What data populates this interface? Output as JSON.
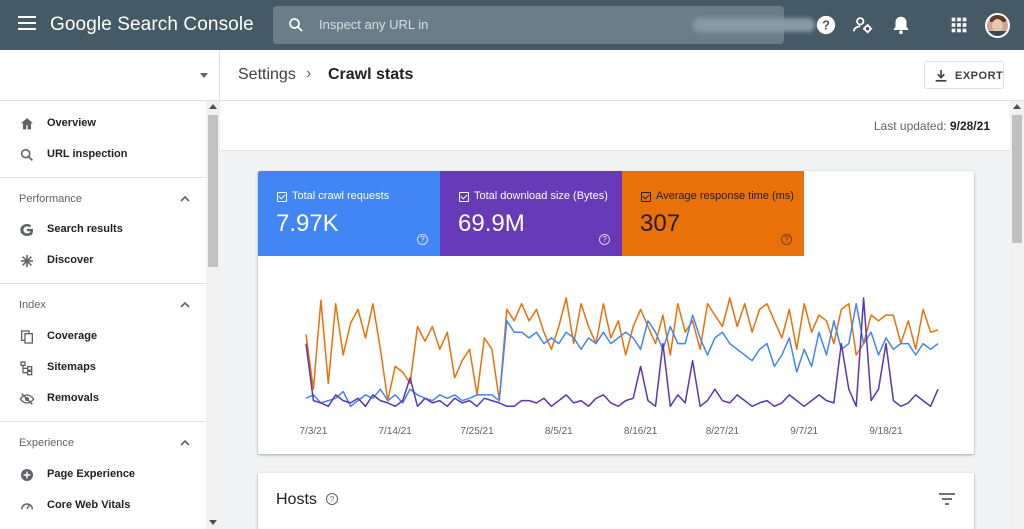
{
  "app": {
    "title": "Google Search Console"
  },
  "search": {
    "placeholder": "Inspect any URL in"
  },
  "breadcrumb": {
    "parent": "Settings",
    "separator": "›",
    "current": "Crawl stats"
  },
  "toolbar": {
    "export_label": "EXPORT"
  },
  "updated": {
    "label": "Last updated:",
    "date": "9/28/21"
  },
  "sidebar": {
    "top_items": [
      {
        "label": "Overview",
        "icon": "home-icon"
      },
      {
        "label": "URL inspection",
        "icon": "search-icon"
      }
    ],
    "sections": [
      {
        "title": "Performance",
        "items": [
          {
            "label": "Search results",
            "icon": "google-g-icon"
          },
          {
            "label": "Discover",
            "icon": "asterisk-icon"
          }
        ]
      },
      {
        "title": "Index",
        "items": [
          {
            "label": "Coverage",
            "icon": "copy-icon"
          },
          {
            "label": "Sitemaps",
            "icon": "sitemap-icon"
          },
          {
            "label": "Removals",
            "icon": "eye-off-icon"
          }
        ]
      },
      {
        "title": "Experience",
        "items": [
          {
            "label": "Page Experience",
            "icon": "add-circle-icon"
          },
          {
            "label": "Core Web Vitals",
            "icon": "speedometer-icon"
          }
        ]
      }
    ]
  },
  "metrics": [
    {
      "label": "Total crawl requests",
      "value": "7.97K",
      "color": "#4285f4"
    },
    {
      "label": "Total download size (Bytes)",
      "value": "69.9M",
      "color": "#673ab7"
    },
    {
      "label": "Average response time (ms)",
      "value": "307",
      "color": "#e8710a"
    }
  ],
  "hosts": {
    "title": "Hosts"
  },
  "chart_data": {
    "type": "line",
    "title": "",
    "x_tick_labels": [
      "7/3/21",
      "7/14/21",
      "7/25/21",
      "8/5/21",
      "8/16/21",
      "8/27/21",
      "9/7/21",
      "9/18/21"
    ],
    "x_tick_index": [
      1,
      12,
      23,
      34,
      45,
      56,
      67,
      78
    ],
    "ylim": [
      0,
      100
    ],
    "axes_shown": false,
    "series": [
      {
        "name": "Average response time (ms)",
        "color": "#e8710a",
        "values": [
          68,
          20,
          98,
          25,
          95,
          50,
          78,
          90,
          65,
          95,
          55,
          10,
          40,
          35,
          25,
          75,
          62,
          75,
          55,
          70,
          30,
          45,
          55,
          15,
          65,
          55,
          10,
          90,
          80,
          95,
          80,
          90,
          70,
          55,
          75,
          100,
          60,
          95,
          75,
          60,
          95,
          65,
          80,
          50,
          75,
          90,
          75,
          60,
          85,
          50,
          95,
          70,
          80,
          55,
          95,
          85,
          75,
          100,
          75,
          95,
          70,
          90,
          95,
          80,
          65,
          90,
          55,
          95,
          70,
          85,
          80,
          60,
          90,
          95,
          50,
          60,
          85,
          80,
          85,
          85,
          60,
          80,
          55,
          90,
          70,
          72
        ]
      },
      {
        "name": "Total crawl requests",
        "color": "#4285f4",
        "values": [
          12,
          15,
          8,
          10,
          12,
          18,
          5,
          10,
          15,
          12,
          20,
          10,
          15,
          8,
          20,
          15,
          12,
          10,
          15,
          12,
          15,
          10,
          12,
          15,
          15,
          15,
          10,
          80,
          70,
          70,
          65,
          70,
          60,
          65,
          60,
          70,
          65,
          55,
          65,
          60,
          70,
          60,
          65,
          70,
          65,
          55,
          80,
          70,
          55,
          75,
          60,
          60,
          85,
          65,
          50,
          65,
          70,
          60,
          55,
          50,
          45,
          55,
          60,
          40,
          50,
          65,
          35,
          55,
          40,
          70,
          50,
          80,
          55,
          60,
          95,
          60,
          70,
          50,
          65,
          55,
          60,
          60,
          50,
          60,
          55,
          60
        ]
      },
      {
        "name": "Total download size (Bytes)",
        "color": "#5e35b1",
        "values": [
          60,
          10,
          8,
          5,
          15,
          10,
          8,
          12,
          5,
          15,
          10,
          8,
          5,
          10,
          30,
          5,
          12,
          8,
          10,
          5,
          12,
          8,
          10,
          5,
          12,
          10,
          8,
          5,
          5,
          10,
          10,
          8,
          12,
          5,
          10,
          15,
          8,
          10,
          5,
          12,
          15,
          8,
          5,
          10,
          12,
          40,
          10,
          5,
          60,
          5,
          15,
          8,
          45,
          5,
          10,
          20,
          10,
          8,
          15,
          10,
          5,
          8,
          10,
          5,
          8,
          15,
          10,
          5,
          10,
          15,
          10,
          8,
          60,
          20,
          5,
          100,
          10,
          20,
          60,
          10,
          5,
          8,
          15,
          10,
          5,
          20
        ]
      }
    ]
  }
}
